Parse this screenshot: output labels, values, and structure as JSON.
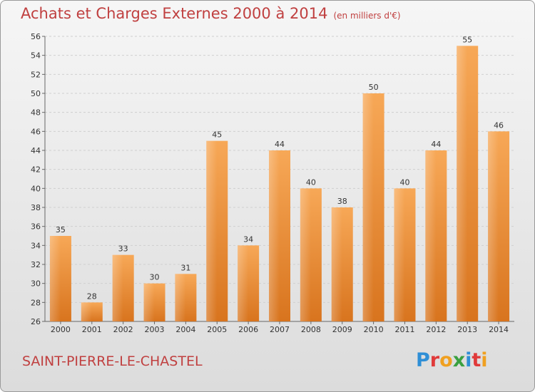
{
  "header": {
    "title": "Achats et Charges Externes 2000 à 2014",
    "subtitle": "(en milliers d'€)"
  },
  "footer": {
    "city": "SAINT-PIERRE-LE-CHASTEL",
    "logo": {
      "letters": [
        "P",
        "r",
        "o",
        "x",
        "i",
        "t",
        "i"
      ],
      "colors": [
        "#2f8fd6",
        "#e03a3a",
        "#f0a020",
        "#3aa040",
        "#2f8fd6",
        "#e03a3a",
        "#f0a020"
      ]
    }
  },
  "chart_data": {
    "type": "bar",
    "title": "Achats et Charges Externes 2000 à 2014",
    "subtitle": "(en milliers d'€)",
    "categories": [
      "2000",
      "2001",
      "2002",
      "2003",
      "2004",
      "2005",
      "2006",
      "2007",
      "2008",
      "2009",
      "2010",
      "2011",
      "2012",
      "2013",
      "2014"
    ],
    "values": [
      35,
      28,
      33,
      30,
      31,
      45,
      34,
      44,
      40,
      38,
      50,
      40,
      44,
      55,
      46
    ],
    "ylim": [
      26,
      56
    ],
    "yticks": [
      26,
      28,
      30,
      32,
      34,
      36,
      38,
      40,
      42,
      44,
      46,
      48,
      50,
      52,
      54,
      56
    ],
    "grid": true,
    "bar_color": "#e8883a"
  }
}
